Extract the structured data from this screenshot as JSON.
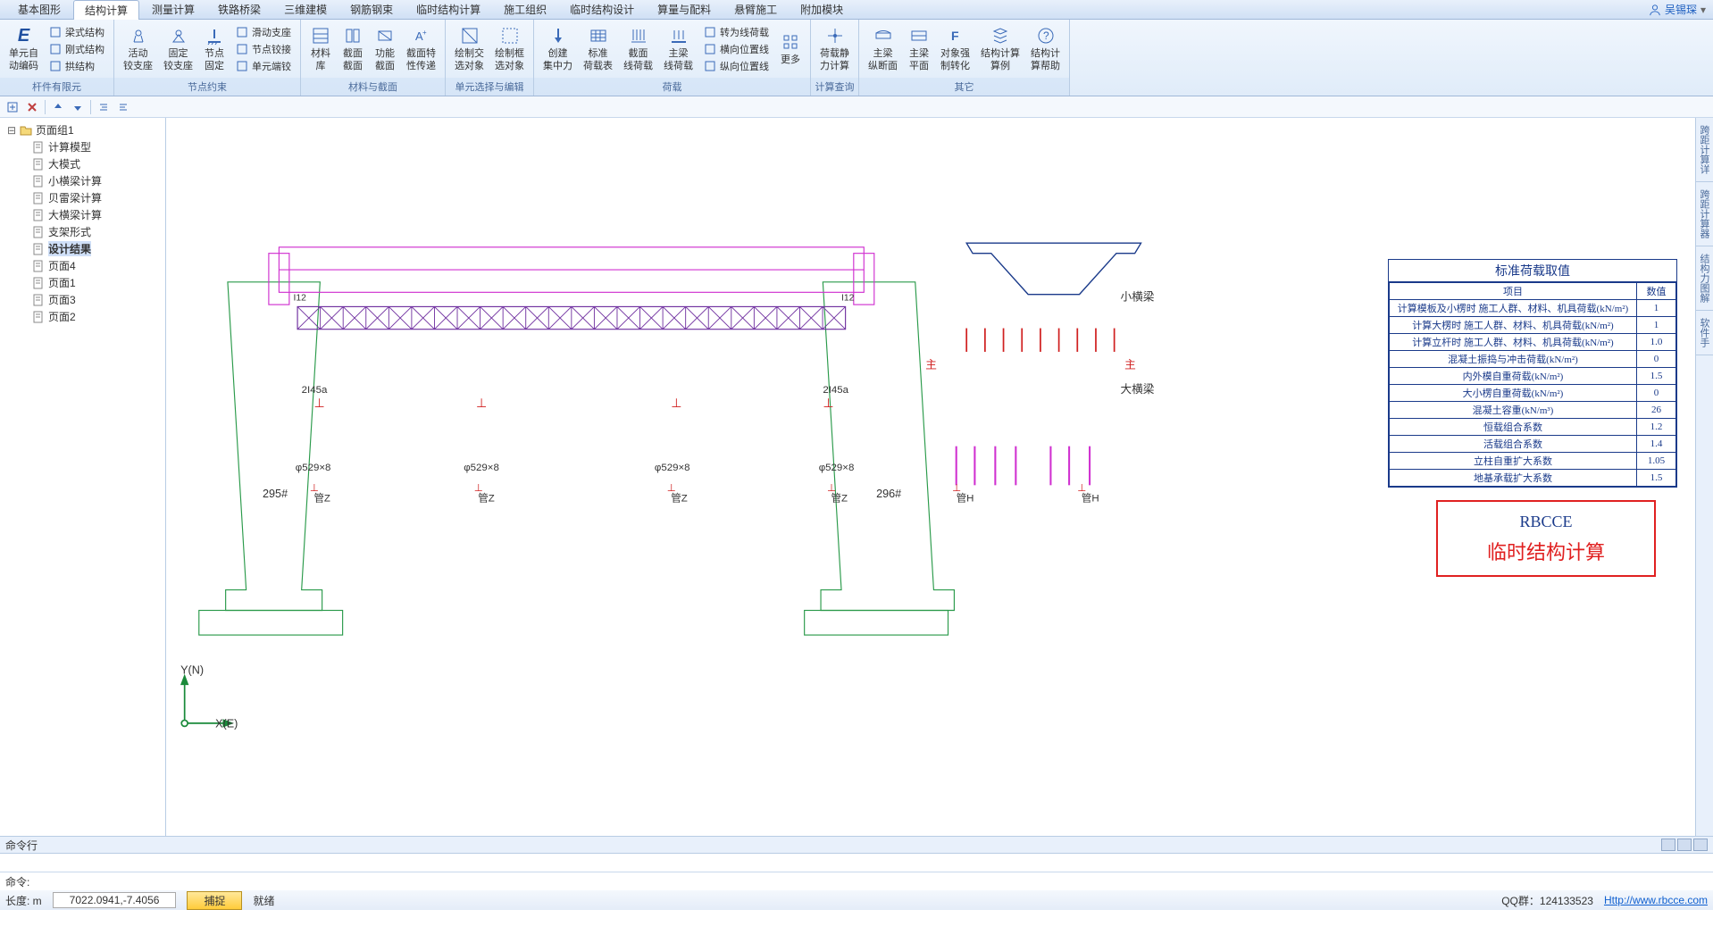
{
  "user": "吴锡琛",
  "menu_tabs": [
    "基本图形",
    "结构计算",
    "测量计算",
    "铁路桥梁",
    "三维建模",
    "钢筋钢束",
    "临时结构计算",
    "施工组织",
    "临时结构设计",
    "算量与配料",
    "悬臂施工",
    "附加模块"
  ],
  "menu_active_index": 1,
  "ribbon": {
    "groups": [
      {
        "label": "杆件有限元",
        "items": [
          {
            "type": "big",
            "icon": "E",
            "text": "单元自\n动编码",
            "color": "#2050a0"
          },
          {
            "type": "small",
            "items": [
              {
                "icon": "beam",
                "text": "梁式结构"
              },
              {
                "icon": "frame",
                "text": "刚式结构"
              },
              {
                "icon": "arch",
                "text": "拱结构"
              }
            ]
          }
        ]
      },
      {
        "label": "节点约束",
        "items": [
          {
            "type": "big",
            "icon": "hinge1",
            "text": "活动\n铰支座"
          },
          {
            "type": "big",
            "icon": "hinge2",
            "text": "固定\n铰支座"
          },
          {
            "type": "big",
            "icon": "fixed",
            "text": "节点\n固定"
          },
          {
            "type": "small",
            "items": [
              {
                "icon": "slide",
                "text": "滑动支座"
              },
              {
                "icon": "nhinge",
                "text": "节点铰接"
              },
              {
                "icon": "release",
                "text": "单元端铰"
              }
            ]
          }
        ]
      },
      {
        "label": "材料与截面",
        "items": [
          {
            "type": "big",
            "icon": "matlib",
            "text": "材料\n库"
          },
          {
            "type": "big",
            "icon": "section",
            "text": "截面\n截面"
          },
          {
            "type": "big",
            "icon": "funcsec",
            "text": "功能\n截面"
          },
          {
            "type": "big",
            "icon": "secprop",
            "text": "截面特\n性传递"
          }
        ]
      },
      {
        "label": "单元选择与编辑",
        "items": [
          {
            "type": "big",
            "icon": "selcr",
            "text": "绘制交\n选对象"
          },
          {
            "type": "big",
            "icon": "selbox",
            "text": "绘制框\n选对象"
          }
        ]
      },
      {
        "label": "荷载",
        "items": [
          {
            "type": "big",
            "icon": "conc",
            "text": "创建\n集中力"
          },
          {
            "type": "big",
            "icon": "stdload",
            "text": "标准\n荷载表"
          },
          {
            "type": "big",
            "icon": "secload",
            "text": "截面\n线荷载"
          },
          {
            "type": "big",
            "icon": "mainload",
            "text": "主梁\n线荷载"
          },
          {
            "type": "small",
            "items": [
              {
                "icon": "lineload",
                "text": "转为线荷载"
              },
              {
                "icon": "hpos",
                "text": "横向位置线"
              },
              {
                "icon": "vpos",
                "text": "纵向位置线"
              }
            ]
          },
          {
            "type": "big",
            "icon": "more",
            "text": "更多"
          }
        ]
      },
      {
        "label": "计算查询",
        "items": [
          {
            "type": "big",
            "icon": "static",
            "text": "荷载静\n力计算"
          }
        ]
      },
      {
        "label": "其它",
        "items": [
          {
            "type": "big",
            "icon": "longsec",
            "text": "主梁\n纵断面"
          },
          {
            "type": "big",
            "icon": "plan",
            "text": "主梁\n平面"
          },
          {
            "type": "big",
            "icon": "strong",
            "text": "对象强\n制转化"
          },
          {
            "type": "big",
            "icon": "examples",
            "text": "结构计算\n算例"
          },
          {
            "type": "big",
            "icon": "help",
            "text": "结构计\n算帮助"
          }
        ]
      }
    ]
  },
  "tree": {
    "root": "页面组1",
    "children": [
      "计算模型",
      "大模式",
      "小横梁计算",
      "贝雷梁计算",
      "大横梁计算",
      "支架形式",
      "设计结果",
      "页面4",
      "页面1",
      "页面3",
      "页面2"
    ],
    "selected": "设计结果"
  },
  "side_tabs": [
    "跨距计算详",
    "跨距计算器",
    "结构力图解",
    "软件手"
  ],
  "load_table": {
    "title": "标准荷载取值",
    "headers": [
      "项目",
      "数值"
    ],
    "rows": [
      [
        "计算模板及小楞时 施工人群、材料、机具荷载(kN/m²)",
        "1"
      ],
      [
        "计算大楞时 施工人群、材料、机具荷载(kN/m²)",
        "1"
      ],
      [
        "计算立杆时 施工人群、材料、机具荷载(kN/m²)",
        "1.0"
      ],
      [
        "混凝土振捣与冲击荷载(kN/m²)",
        "0"
      ],
      [
        "内外模自重荷载(kN/m²)",
        "1.5"
      ],
      [
        "大小楞自重荷载(kN/m²)",
        "0"
      ],
      [
        "混凝土容重(kN/m³)",
        "26"
      ],
      [
        "恒载组合系数",
        "1.2"
      ],
      [
        "活载组合系数",
        "1.4"
      ],
      [
        "立柱自重扩大系数",
        "1.05"
      ],
      [
        "地基承载扩大系数",
        "1.5"
      ]
    ]
  },
  "brand": {
    "line1": "RBCCE",
    "line2": "临时结构计算"
  },
  "canvas_labels": {
    "xiaoheng": "小横梁",
    "daheng": "大横梁",
    "i12a": "I12",
    "i12b": "I12",
    "i45a": "2I45a",
    "i45b": "2I45a",
    "p1": "φ529×8",
    "p2": "φ529×8",
    "p3": "φ529×8",
    "p4": "φ529×8",
    "gz1": "管Z",
    "gz2": "管Z",
    "gz3": "管Z",
    "gz4": "管Z",
    "gh1": "管H",
    "gh2": "管H",
    "n295": "295#",
    "n296": "296#",
    "yaxis": "Y(N)",
    "xaxis": "X(E)",
    "red1": "主",
    "red2": "主"
  },
  "cmd": {
    "title": "命令行",
    "prompt": "命令:"
  },
  "status": {
    "length_label": "长度: m",
    "coords": "7022.0941,-7.4056",
    "snap": "捕捉",
    "ready": "就绪",
    "qq_label": "QQ群：",
    "qq": "124133523",
    "url": "Http://www.rbcce.com"
  }
}
